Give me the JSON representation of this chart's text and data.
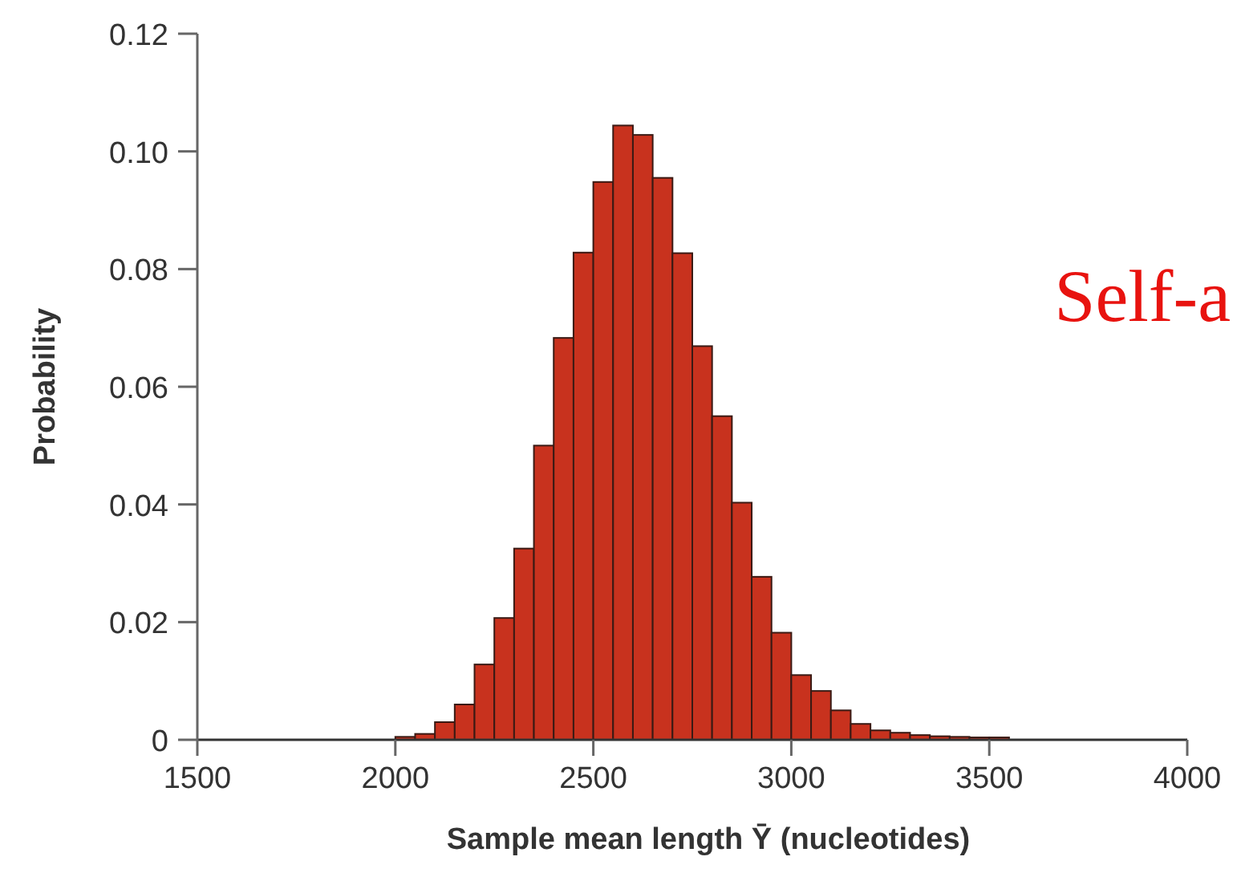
{
  "chart_data": {
    "type": "histogram",
    "xlabel": "Sample mean length Ȳ (nucleotides)",
    "ylabel": "Probability",
    "color": "#c8321e",
    "bins": [
      2000,
      2050,
      2100,
      2150,
      2200,
      2250,
      2300,
      2350,
      2400,
      2450,
      2500,
      2550,
      2600,
      2650,
      2700,
      2750,
      2800,
      2850,
      2900,
      2950,
      3000,
      3050,
      3100,
      3150,
      3200,
      3250,
      3300,
      3350,
      3400,
      3450,
      3500,
      3550
    ],
    "values": [
      0.0005,
      0.001,
      0.003,
      0.006,
      0.0128,
      0.0207,
      0.0325,
      0.05,
      0.0683,
      0.0828,
      0.0948,
      0.1044,
      0.1028,
      0.0955,
      0.0827,
      0.0669,
      0.055,
      0.0403,
      0.0277,
      0.0182,
      0.011,
      0.0083,
      0.005,
      0.0027,
      0.0016,
      0.0012,
      0.0008,
      0.0006,
      0.0005,
      0.0004,
      0.0004
    ],
    "xlim": [
      1500,
      4000
    ],
    "xticks": [
      1500,
      2000,
      2500,
      3000,
      3500,
      4000
    ],
    "ylim": [
      0,
      0.12
    ],
    "yticks": [
      {
        "value": 0,
        "label": "0"
      },
      {
        "value": 0.02,
        "label": "0.02"
      },
      {
        "value": 0.04,
        "label": "0.04"
      },
      {
        "value": 0.06,
        "label": "0.06"
      },
      {
        "value": 0.08,
        "label": "0.08"
      },
      {
        "value": 0.1,
        "label": "0.10"
      },
      {
        "value": 0.12,
        "label": "0.12"
      }
    ],
    "annotations": [
      "Self-a"
    ]
  }
}
